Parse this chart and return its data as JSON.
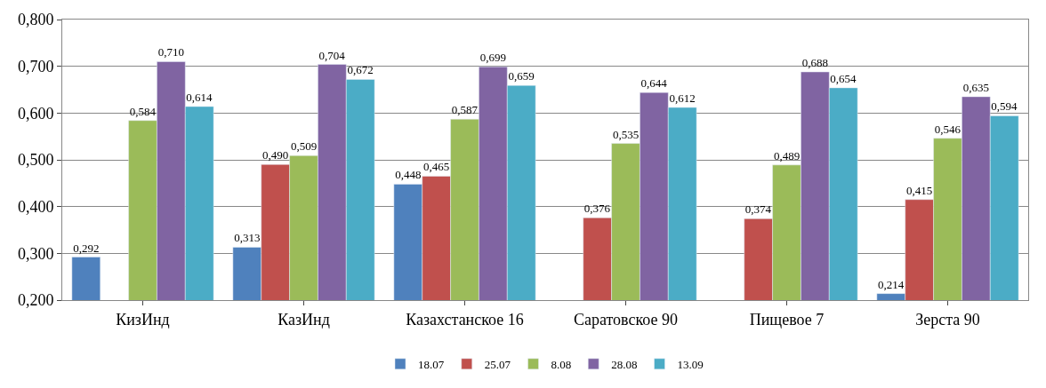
{
  "chart_data": {
    "type": "bar",
    "categories": [
      "КизИнд",
      "КазИнд",
      "Казахстанское 16",
      "Саратовское 90",
      "Пищевое 7",
      "Зерста 90"
    ],
    "series": [
      {
        "name": "18.07",
        "color": "#4f81bd",
        "values": [
          0.292,
          0.313,
          0.448,
          null,
          null,
          0.214
        ],
        "value_labels": [
          "0,292",
          "0,313",
          "0,448",
          null,
          null,
          "0,214"
        ]
      },
      {
        "name": "25.07",
        "color": "#c0504d",
        "values": [
          null,
          0.49,
          0.465,
          0.376,
          0.374,
          0.415
        ],
        "value_labels": [
          null,
          "0,490",
          "0,465",
          "0,376",
          "0,374",
          "0,415"
        ]
      },
      {
        "name": "8.08",
        "color": "#9bbb59",
        "values": [
          0.584,
          0.509,
          0.587,
          0.535,
          0.489,
          0.546
        ],
        "value_labels": [
          "0,584",
          "0,509",
          "0,587",
          "0,535",
          "0,489",
          "0,546"
        ]
      },
      {
        "name": "28.08",
        "color": "#8064a2",
        "values": [
          0.71,
          0.704,
          0.699,
          0.644,
          0.688,
          0.635
        ],
        "value_labels": [
          "0,710",
          "0,704",
          "0,699",
          "0,644",
          "0,688",
          "0,635"
        ]
      },
      {
        "name": "13.09",
        "color": "#4bacc6",
        "values": [
          0.614,
          0.672,
          0.659,
          0.612,
          0.654,
          0.594
        ],
        "value_labels": [
          "0,614",
          "0,672",
          "0,659",
          "0,612",
          "0,654",
          "0,594"
        ]
      }
    ],
    "ylim": [
      0.2,
      0.8
    ],
    "yticks": [
      {
        "value": 0.2,
        "label": "0,200"
      },
      {
        "value": 0.3,
        "label": "0,300"
      },
      {
        "value": 0.4,
        "label": "0,400"
      },
      {
        "value": 0.5,
        "label": "0,500"
      },
      {
        "value": 0.6,
        "label": "0,600"
      },
      {
        "value": 0.7,
        "label": "0,700"
      },
      {
        "value": 0.8,
        "label": "0,800"
      }
    ],
    "grid": "y",
    "legend": "bottom"
  }
}
